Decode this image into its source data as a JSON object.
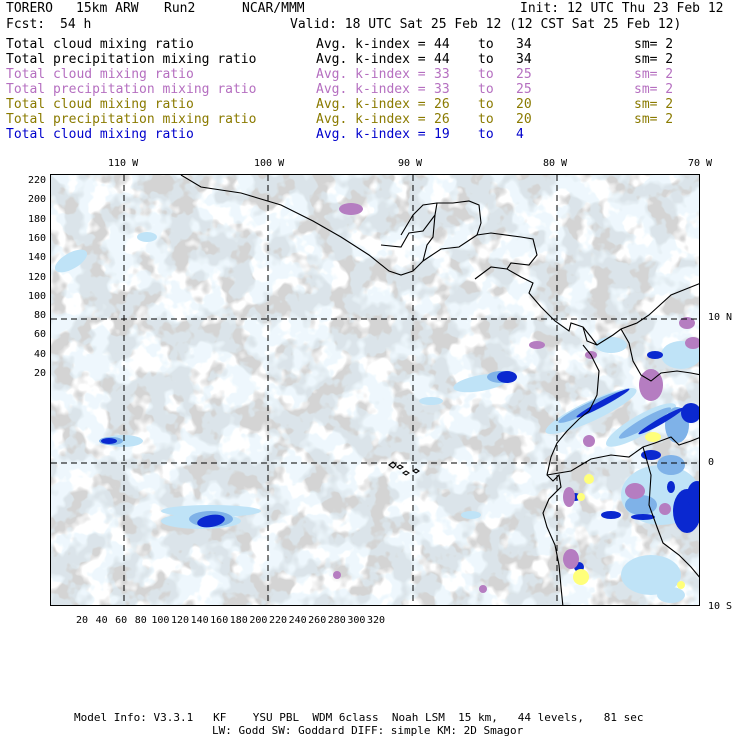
{
  "header": {
    "model": "TORERO",
    "resolution": "15km ARW",
    "run": "Run2",
    "org": "NCAR/MMM",
    "init": "Init: 12 UTC Thu 23 Feb 12",
    "fcst_label": "Fcst:",
    "fcst_value": "54 h",
    "valid": "Valid: 18 UTC Sat 25 Feb 12 (12 CST Sat 25 Feb 12)"
  },
  "legend_rows": [
    {
      "field": "Total cloud mixing ratio",
      "kidx": "Avg. k-index =",
      "from": "44",
      "to_word": "to",
      "to": "34",
      "sm": "sm= 2",
      "color": "#000000"
    },
    {
      "field": "Total precipitation mixing ratio",
      "kidx": "Avg. k-index =",
      "from": "44",
      "to_word": "to",
      "to": "34",
      "sm": "sm= 2",
      "color": "#000000"
    },
    {
      "field": "Total cloud mixing ratio",
      "kidx": "Avg. k-index =",
      "from": "33",
      "to_word": "to",
      "to": "25",
      "sm": "sm= 2",
      "color": "#b56fc0"
    },
    {
      "field": "Total precipitation mixing ratio",
      "kidx": "Avg. k-index =",
      "from": "33",
      "to_word": "to",
      "to": "25",
      "sm": "sm= 2",
      "color": "#b56fc0"
    },
    {
      "field": "Total cloud mixing ratio",
      "kidx": "Avg. k-index =",
      "from": "26",
      "to_word": "to",
      "to": "20",
      "sm": "sm= 2",
      "color": "#8a7a00"
    },
    {
      "field": "Total precipitation mixing ratio",
      "kidx": "Avg. k-index =",
      "from": "26",
      "to_word": "to",
      "to": "20",
      "sm": "sm= 2",
      "color": "#8a7a00"
    },
    {
      "field": "Total cloud mixing ratio",
      "kidx": "Avg. k-index =",
      "from": "19",
      "to_word": "to",
      "to": "4",
      "sm": "",
      "color": "#0000cc"
    }
  ],
  "map": {
    "lon_labels": [
      "110 W",
      "100 W",
      "90 W",
      "80 W",
      "70 W"
    ],
    "lat_labels": [
      "10 N",
      "0",
      "10 S"
    ],
    "x_ticks": [
      "20",
      "40",
      "60",
      "80",
      "100",
      "120",
      "140",
      "160",
      "180",
      "200",
      "220",
      "240",
      "260",
      "280",
      "300",
      "320"
    ],
    "y_ticks": [
      "220",
      "200",
      "180",
      "160",
      "140",
      "120",
      "100",
      "80",
      "60",
      "40",
      "20"
    ],
    "colors": {
      "gray_cloud": "#a8a8a8",
      "light_blue": "#bfe3f7",
      "mid_blue": "#7fb2e8",
      "dark_blue": "#0a28d0",
      "purple": "#b57dc1",
      "yellow": "#ffff7a",
      "grid": "#000000"
    }
  },
  "footer": {
    "line1": "Model Info: V3.3.1   KF    YSU PBL  WDM 6class  Noah LSM  15 km,   44 levels,   81 sec",
    "line2": "LW: Godd SW: Goddard DIFF: simple KM: 2D Smagor"
  }
}
